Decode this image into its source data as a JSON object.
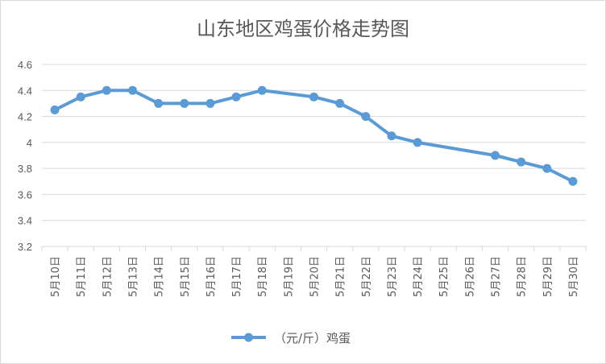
{
  "chart_data": {
    "type": "line",
    "title": "山东地区鸡蛋价格走势图",
    "xlabel": "",
    "ylabel": "",
    "ylim": [
      3.2,
      4.6
    ],
    "yticks": [
      "3.2",
      "3.4",
      "3.6",
      "3.8",
      "4",
      "4.2",
      "4.4",
      "4.6"
    ],
    "grid": true,
    "legend_position": "bottom",
    "categories": [
      "5月10日",
      "5月11日",
      "5月12日",
      "5月13日",
      "5月14日",
      "5月15日",
      "5月16日",
      "5月17日",
      "5月18日",
      "5月19日",
      "5月20日",
      "5月21日",
      "5月22日",
      "5月23日",
      "5月24日",
      "5月25日",
      "5月26日",
      "5月27日",
      "5月28日",
      "5月29日",
      "5月30日"
    ],
    "series": [
      {
        "name": "（元/斤）鸡蛋",
        "color": "#5b9bd5",
        "values": [
          4.25,
          4.35,
          4.4,
          4.4,
          4.3,
          4.3,
          4.3,
          4.35,
          4.4,
          null,
          4.35,
          4.3,
          4.2,
          4.05,
          4.0,
          null,
          null,
          3.9,
          3.85,
          3.8,
          3.7
        ]
      }
    ]
  }
}
